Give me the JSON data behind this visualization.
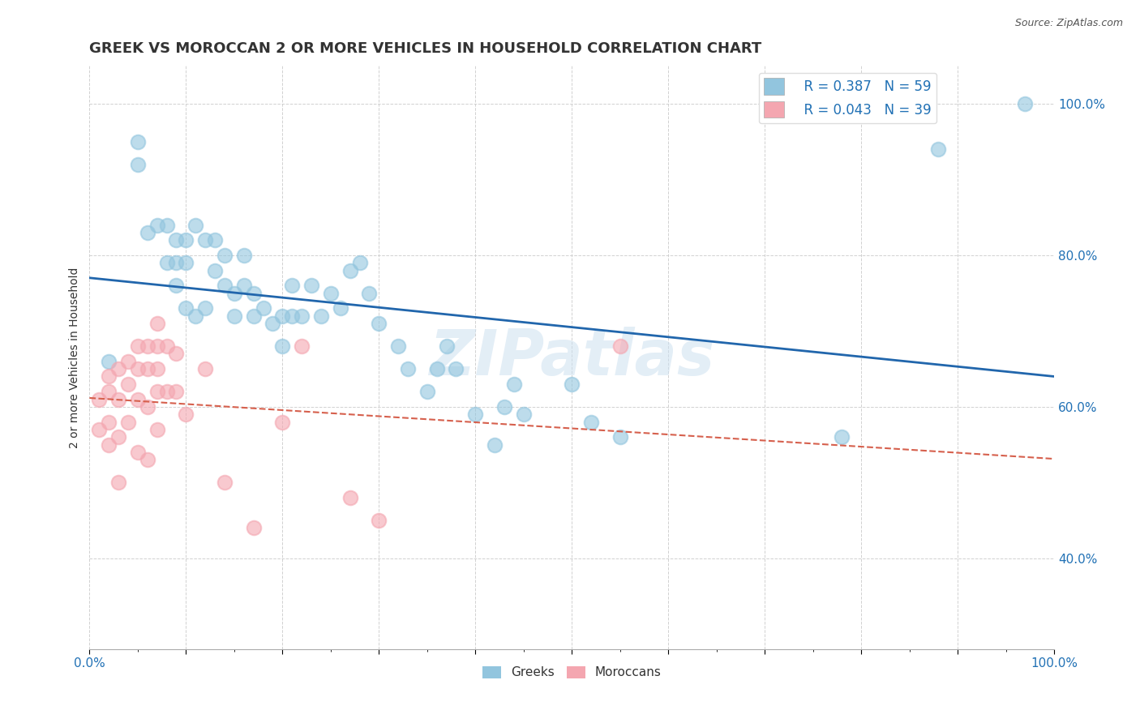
{
  "title": "GREEK VS MOROCCAN 2 OR MORE VEHICLES IN HOUSEHOLD CORRELATION CHART",
  "source": "Source: ZipAtlas.com",
  "xlabel": "",
  "ylabel": "2 or more Vehicles in Household",
  "watermark": "ZIPatlas",
  "legend_r1": "R = 0.387",
  "legend_n1": "N = 59",
  "legend_r2": "R = 0.043",
  "legend_n2": "N = 39",
  "legend_label1": "Greeks",
  "legend_label2": "Moroccans",
  "greek_color": "#92c5de",
  "moroccan_color": "#f4a6b0",
  "greek_line_color": "#2166ac",
  "moroccan_line_color": "#d6604d",
  "background_color": "#ffffff",
  "greek_points_x": [
    0.02,
    0.05,
    0.05,
    0.06,
    0.07,
    0.08,
    0.08,
    0.09,
    0.09,
    0.09,
    0.1,
    0.1,
    0.1,
    0.11,
    0.11,
    0.12,
    0.12,
    0.13,
    0.13,
    0.14,
    0.14,
    0.15,
    0.15,
    0.16,
    0.16,
    0.17,
    0.17,
    0.18,
    0.19,
    0.2,
    0.2,
    0.21,
    0.21,
    0.22,
    0.23,
    0.24,
    0.25,
    0.26,
    0.27,
    0.28,
    0.29,
    0.3,
    0.32,
    0.33,
    0.35,
    0.36,
    0.37,
    0.38,
    0.4,
    0.42,
    0.43,
    0.44,
    0.45,
    0.5,
    0.52,
    0.55,
    0.78,
    0.88,
    0.97
  ],
  "greek_points_y": [
    0.66,
    0.95,
    0.92,
    0.83,
    0.84,
    0.84,
    0.79,
    0.82,
    0.79,
    0.76,
    0.82,
    0.79,
    0.73,
    0.72,
    0.84,
    0.73,
    0.82,
    0.78,
    0.82,
    0.76,
    0.8,
    0.75,
    0.72,
    0.8,
    0.76,
    0.75,
    0.72,
    0.73,
    0.71,
    0.72,
    0.68,
    0.76,
    0.72,
    0.72,
    0.76,
    0.72,
    0.75,
    0.73,
    0.78,
    0.79,
    0.75,
    0.71,
    0.68,
    0.65,
    0.62,
    0.65,
    0.68,
    0.65,
    0.59,
    0.55,
    0.6,
    0.63,
    0.59,
    0.63,
    0.58,
    0.56,
    0.56,
    0.94,
    1.0
  ],
  "moroccan_points_x": [
    0.01,
    0.01,
    0.02,
    0.02,
    0.02,
    0.02,
    0.03,
    0.03,
    0.03,
    0.03,
    0.04,
    0.04,
    0.04,
    0.05,
    0.05,
    0.05,
    0.05,
    0.06,
    0.06,
    0.06,
    0.06,
    0.07,
    0.07,
    0.07,
    0.07,
    0.07,
    0.08,
    0.08,
    0.09,
    0.09,
    0.1,
    0.12,
    0.14,
    0.17,
    0.2,
    0.22,
    0.27,
    0.3,
    0.55
  ],
  "moroccan_points_y": [
    0.61,
    0.57,
    0.64,
    0.62,
    0.58,
    0.55,
    0.65,
    0.61,
    0.56,
    0.5,
    0.66,
    0.63,
    0.58,
    0.68,
    0.65,
    0.61,
    0.54,
    0.68,
    0.65,
    0.6,
    0.53,
    0.71,
    0.68,
    0.65,
    0.62,
    0.57,
    0.68,
    0.62,
    0.67,
    0.62,
    0.59,
    0.65,
    0.5,
    0.44,
    0.58,
    0.68,
    0.48,
    0.45,
    0.68
  ],
  "title_fontsize": 13,
  "axis_fontsize": 10,
  "tick_fontsize": 10
}
